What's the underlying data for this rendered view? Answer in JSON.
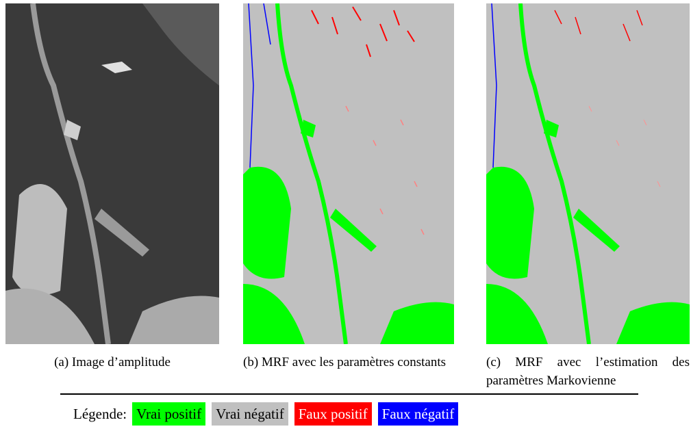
{
  "figures": [
    {
      "caption": "(a) Image d’amplitude"
    },
    {
      "caption": "(b) MRF avec les paramètres constants"
    },
    {
      "caption": "(c) MRF avec l’estimation des paramètres Markovienne"
    }
  ],
  "legend": {
    "label": "Légende:",
    "items": [
      {
        "text": "Vrai positif",
        "color": "#00ff00"
      },
      {
        "text": "Vrai négatif",
        "color": "#c0c0c0"
      },
      {
        "text": "Faux positif",
        "color": "#ff0000"
      },
      {
        "text": "Faux négatif",
        "color": "#0000ff"
      }
    ]
  }
}
